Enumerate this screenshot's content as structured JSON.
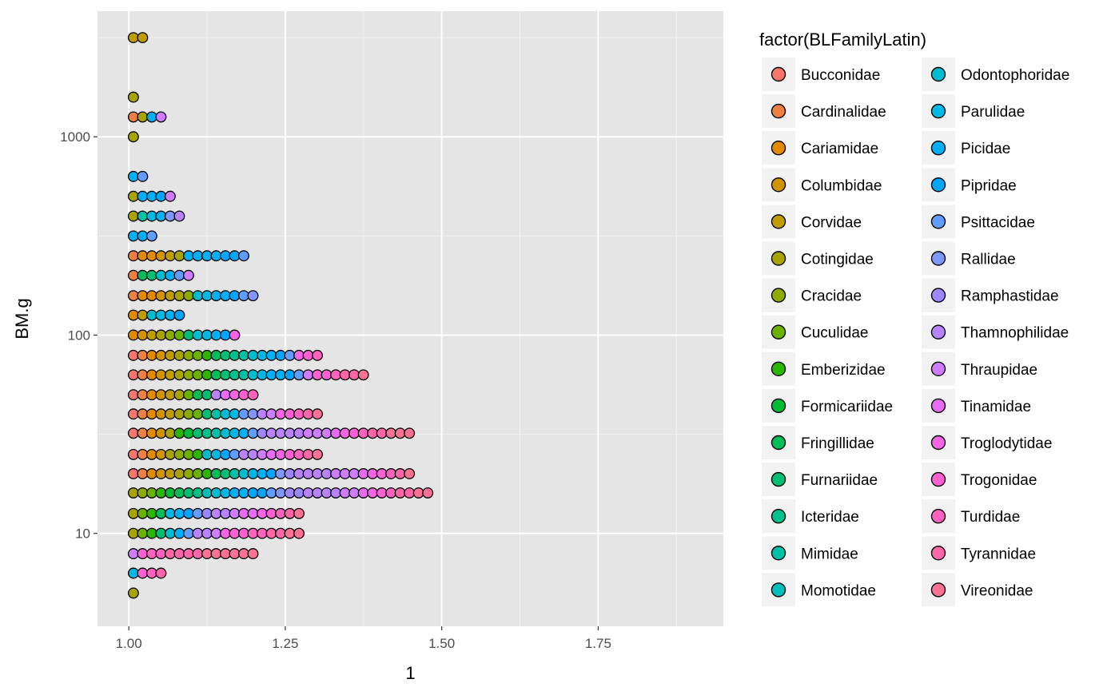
{
  "chart_data": {
    "type": "scatter",
    "subtype": "dotplot-stacked",
    "title": "",
    "xlabel": "1",
    "ylabel": "BM.g",
    "y_scale": "log10",
    "xlim": [
      0.95,
      1.95
    ],
    "ylim": [
      3.4,
      4300
    ],
    "x_ticks": [
      {
        "value": 1.0,
        "label": "1.00"
      },
      {
        "value": 1.25,
        "label": "1.25"
      },
      {
        "value": 1.5,
        "label": "1.50"
      },
      {
        "value": 1.75,
        "label": "1.75"
      }
    ],
    "y_ticks": [
      {
        "value": 10,
        "label": "10"
      },
      {
        "value": 100,
        "label": "100"
      },
      {
        "value": 1000,
        "label": "1000"
      }
    ],
    "grid": true,
    "panel_background": "#e5e5e5",
    "legend": {
      "title": "factor(BLFamilyLatin)",
      "position": "right",
      "columns": 2
    },
    "series": [
      {
        "name": "Bucconidae",
        "color": "#F8766D"
      },
      {
        "name": "Cardinalidae",
        "color": "#EE8043"
      },
      {
        "name": "Cariamidae",
        "color": "#E08B00"
      },
      {
        "name": "Columbidae",
        "color": "#D09400"
      },
      {
        "name": "Corvidae",
        "color": "#BD9D00"
      },
      {
        "name": "Cotingidae",
        "color": "#A7A400"
      },
      {
        "name": "Cracidae",
        "color": "#8EAB00"
      },
      {
        "name": "Cuculidae",
        "color": "#6BB100"
      },
      {
        "name": "Emberizidae",
        "color": "#2DB600"
      },
      {
        "name": "Formicariidae",
        "color": "#00BA38"
      },
      {
        "name": "Fringillidae",
        "color": "#00BC59"
      },
      {
        "name": "Furnariidae",
        "color": "#00BF74"
      },
      {
        "name": "Icteridae",
        "color": "#00C08D"
      },
      {
        "name": "Mimidae",
        "color": "#00C0A5"
      },
      {
        "name": "Momotidae",
        "color": "#00BFBB"
      },
      {
        "name": "Odontophoridae",
        "color": "#00BCD0"
      },
      {
        "name": "Parulidae",
        "color": "#00B8E3"
      },
      {
        "name": "Picidae",
        "color": "#00B0F6"
      },
      {
        "name": "Pipridae",
        "color": "#00A5FF"
      },
      {
        "name": "Psittacidae",
        "color": "#619CFF"
      },
      {
        "name": "Rallidae",
        "color": "#7F96FF"
      },
      {
        "name": "Ramphastidae",
        "color": "#9E86FF"
      },
      {
        "name": "Thamnophilidae",
        "color": "#B983FF"
      },
      {
        "name": "Thraupidae",
        "color": "#D07CFF"
      },
      {
        "name": "Tinamidae",
        "color": "#E76BF3"
      },
      {
        "name": "Troglodytidae",
        "color": "#F564E3"
      },
      {
        "name": "Trogonidae",
        "color": "#FD61D1"
      },
      {
        "name": "Turdidae",
        "color": "#FF62BC"
      },
      {
        "name": "Tyrannidae",
        "color": "#FF66A8"
      },
      {
        "name": "Vireonidae",
        "color": "#FB7294"
      }
    ],
    "stacks": [
      {
        "y": 3162,
        "families": [
          5,
          5
        ]
      },
      {
        "y": 1585,
        "families": [
          6
        ]
      },
      {
        "y": 1259,
        "families": [
          2,
          6,
          18,
          24
        ]
      },
      {
        "y": 1000,
        "families": [
          6
        ]
      },
      {
        "y": 631,
        "families": [
          18,
          20
        ]
      },
      {
        "y": 501,
        "families": [
          6,
          18,
          18,
          19,
          24
        ]
      },
      {
        "y": 398,
        "families": [
          6,
          14,
          17,
          18,
          21,
          23
        ]
      },
      {
        "y": 316,
        "families": [
          18,
          18,
          20
        ]
      },
      {
        "y": 251,
        "families": [
          2,
          3,
          3,
          4,
          5,
          6,
          18,
          18,
          18,
          18,
          19,
          19,
          20
        ]
      },
      {
        "y": 200,
        "families": [
          2,
          11,
          12,
          16,
          18,
          20,
          24
        ]
      },
      {
        "y": 158,
        "families": [
          2,
          3,
          3,
          4,
          5,
          6,
          7,
          16,
          17,
          18,
          18,
          19,
          20,
          21
        ]
      },
      {
        "y": 126,
        "families": [
          3,
          5,
          16,
          17,
          18,
          19
        ]
      },
      {
        "y": 100,
        "families": [
          3,
          4,
          5,
          6,
          7,
          8,
          12,
          16,
          17,
          18,
          19,
          26
        ]
      },
      {
        "y": 79,
        "families": [
          1,
          2,
          3,
          4,
          5,
          6,
          7,
          8,
          9,
          11,
          12,
          13,
          14,
          16,
          17,
          18,
          19,
          20,
          26,
          27,
          28
        ]
      },
      {
        "y": 63,
        "families": [
          1,
          2,
          3,
          4,
          5,
          6,
          7,
          8,
          9,
          11,
          12,
          13,
          14,
          16,
          17,
          18,
          18,
          19,
          20,
          24,
          27,
          27,
          28,
          29,
          29,
          30
        ]
      },
      {
        "y": 50,
        "families": [
          1,
          2,
          3,
          4,
          5,
          6,
          8,
          11,
          12,
          23,
          25,
          26,
          27,
          28
        ]
      },
      {
        "y": 40,
        "families": [
          1,
          2,
          3,
          4,
          5,
          6,
          7,
          8,
          12,
          14,
          16,
          17,
          20,
          21,
          23,
          24,
          26,
          27,
          28,
          29,
          30
        ]
      },
      {
        "y": 32,
        "families": [
          1,
          2,
          3,
          4,
          6,
          9,
          10,
          12,
          13,
          14,
          16,
          17,
          18,
          20,
          22,
          23,
          23,
          23,
          23,
          24,
          24,
          24,
          25,
          26,
          27,
          28,
          29,
          29,
          30,
          30,
          30
        ]
      },
      {
        "y": 25,
        "families": [
          1,
          2,
          3,
          4,
          6,
          7,
          8,
          9,
          16,
          17,
          19,
          20,
          23,
          23,
          24,
          25,
          26,
          27,
          28,
          29,
          30
        ]
      },
      {
        "y": 20,
        "families": [
          1,
          2,
          3,
          4,
          5,
          6,
          7,
          8,
          9,
          11,
          12,
          14,
          16,
          17,
          18,
          19,
          21,
          22,
          23,
          23,
          23,
          23,
          24,
          24,
          24,
          25,
          26,
          27,
          28,
          29,
          30
        ]
      },
      {
        "y": 16,
        "families": [
          6,
          7,
          8,
          9,
          10,
          11,
          12,
          13,
          15,
          16,
          17,
          18,
          18,
          19,
          19,
          20,
          21,
          22,
          22,
          23,
          23,
          23,
          23,
          24,
          24,
          25,
          26,
          27,
          28,
          29,
          29,
          30,
          30
        ]
      },
      {
        "y": 12.6,
        "families": [
          6,
          8,
          9,
          11,
          17,
          18,
          19,
          20,
          22,
          23,
          23,
          24,
          25,
          25,
          26,
          27,
          28,
          29,
          30
        ]
      },
      {
        "y": 10,
        "families": [
          6,
          8,
          9,
          12,
          16,
          18,
          20,
          23,
          23,
          24,
          26,
          27,
          27,
          28,
          28,
          29,
          29,
          30,
          30
        ]
      },
      {
        "y": 7.9,
        "families": [
          24,
          27,
          28,
          28,
          29,
          29,
          29,
          29,
          30,
          30,
          30,
          30,
          30,
          30
        ]
      },
      {
        "y": 6.3,
        "families": [
          17,
          27,
          28,
          29
        ]
      },
      {
        "y": 5.0,
        "families": [
          6
        ]
      }
    ]
  }
}
